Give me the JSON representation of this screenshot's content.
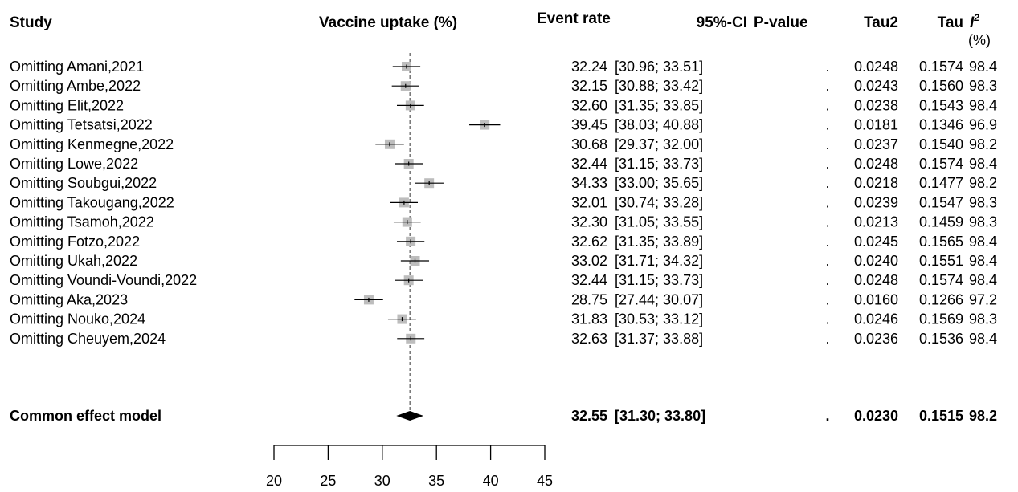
{
  "chart_data": {
    "type": "forest",
    "axis_label": "Vaccine uptake (%)",
    "xlim": [
      20,
      45
    ],
    "ticks": [
      20,
      25,
      30,
      35,
      40,
      45
    ],
    "reference_value": 32.55,
    "headers": {
      "study": "Study",
      "event_rate": "Event rate",
      "ci": "95%-CI",
      "pvalue": "P-value",
      "tau2": "Tau2",
      "tau": "Tau",
      "i2": "I",
      "i2_sup": "2",
      "i2_unit": "(%)"
    },
    "studies": [
      {
        "label": "Omitting Amani,2021",
        "est": 32.24,
        "lower": 30.96,
        "upper": 33.51,
        "ci": "[30.96; 33.51]",
        "pvalue": ".",
        "tau2": "0.0248",
        "tau": "0.1574",
        "i2": "98.4"
      },
      {
        "label": "Omitting Ambe,2022",
        "est": 32.15,
        "lower": 30.88,
        "upper": 33.42,
        "ci": "[30.88; 33.42]",
        "pvalue": ".",
        "tau2": "0.0243",
        "tau": "0.1560",
        "i2": "98.3"
      },
      {
        "label": "Omitting Elit,2022",
        "est": 32.6,
        "lower": 31.35,
        "upper": 33.85,
        "ci": "[31.35; 33.85]",
        "pvalue": ".",
        "tau2": "0.0238",
        "tau": "0.1543",
        "i2": "98.4"
      },
      {
        "label": "Omitting Tetsatsi,2022",
        "est": 39.45,
        "lower": 38.03,
        "upper": 40.88,
        "ci": "[38.03; 40.88]",
        "pvalue": ".",
        "tau2": "0.0181",
        "tau": "0.1346",
        "i2": "96.9"
      },
      {
        "label": "Omitting Kenmegne,2022",
        "est": 30.68,
        "lower": 29.37,
        "upper": 32.0,
        "ci": "[29.37; 32.00]",
        "pvalue": ".",
        "tau2": "0.0237",
        "tau": "0.1540",
        "i2": "98.2"
      },
      {
        "label": "Omitting Lowe,2022",
        "est": 32.44,
        "lower": 31.15,
        "upper": 33.73,
        "ci": "[31.15; 33.73]",
        "pvalue": ".",
        "tau2": "0.0248",
        "tau": "0.1574",
        "i2": "98.4"
      },
      {
        "label": "Omitting Soubgui,2022",
        "est": 34.33,
        "lower": 33.0,
        "upper": 35.65,
        "ci": "[33.00; 35.65]",
        "pvalue": ".",
        "tau2": "0.0218",
        "tau": "0.1477",
        "i2": "98.2"
      },
      {
        "label": "Omitting Takougang,2022",
        "est": 32.01,
        "lower": 30.74,
        "upper": 33.28,
        "ci": "[30.74; 33.28]",
        "pvalue": ".",
        "tau2": "0.0239",
        "tau": "0.1547",
        "i2": "98.3"
      },
      {
        "label": "Omitting Tsamoh,2022",
        "est": 32.3,
        "lower": 31.05,
        "upper": 33.55,
        "ci": "[31.05; 33.55]",
        "pvalue": ".",
        "tau2": "0.0213",
        "tau": "0.1459",
        "i2": "98.3"
      },
      {
        "label": "Omitting Fotzo,2022",
        "est": 32.62,
        "lower": 31.35,
        "upper": 33.89,
        "ci": "[31.35; 33.89]",
        "pvalue": ".",
        "tau2": "0.0245",
        "tau": "0.1565",
        "i2": "98.4"
      },
      {
        "label": "Omitting Ukah,2022",
        "est": 33.02,
        "lower": 31.71,
        "upper": 34.32,
        "ci": "[31.71; 34.32]",
        "pvalue": ".",
        "tau2": "0.0240",
        "tau": "0.1551",
        "i2": "98.4"
      },
      {
        "label": "Omitting Voundi-Voundi,2022",
        "est": 32.44,
        "lower": 31.15,
        "upper": 33.73,
        "ci": "[31.15; 33.73]",
        "pvalue": ".",
        "tau2": "0.0248",
        "tau": "0.1574",
        "i2": "98.4"
      },
      {
        "label": "Omitting Aka,2023",
        "est": 28.75,
        "lower": 27.44,
        "upper": 30.07,
        "ci": "[27.44; 30.07]",
        "pvalue": ".",
        "tau2": "0.0160",
        "tau": "0.1266",
        "i2": "97.2"
      },
      {
        "label": "Omitting Nouko,2024",
        "est": 31.83,
        "lower": 30.53,
        "upper": 33.12,
        "ci": "[30.53; 33.12]",
        "pvalue": ".",
        "tau2": "0.0246",
        "tau": "0.1569",
        "i2": "98.3"
      },
      {
        "label": "Omitting Cheuyem,2024",
        "est": 32.63,
        "lower": 31.37,
        "upper": 33.88,
        "ci": "[31.37; 33.88]",
        "pvalue": ".",
        "tau2": "0.0236",
        "tau": "0.1536",
        "i2": "98.4"
      }
    ],
    "summary": {
      "label": "Common effect model",
      "est": 32.55,
      "lower": 31.3,
      "upper": 33.8,
      "ci": "[31.30; 33.80]",
      "pvalue": ".",
      "tau2": "0.0230",
      "tau": "0.1515",
      "i2": "98.2"
    },
    "colors": {
      "box": "#bdbdbd",
      "line": "#000000",
      "diamond": "#000000"
    }
  }
}
